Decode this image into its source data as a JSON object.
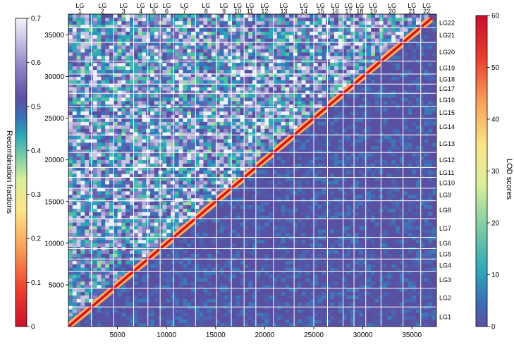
{
  "chart_data": {
    "type": "heatmap",
    "title": "",
    "xlabel": "",
    "ylabel": "",
    "xlim": [
      0,
      37500
    ],
    "ylim": [
      0,
      37500
    ],
    "x_ticks": [
      5000,
      10000,
      15000,
      20000,
      25000,
      30000,
      35000
    ],
    "y_ticks": [
      5000,
      10000,
      15000,
      20000,
      25000,
      30000,
      35000
    ],
    "linkage_groups": [
      {
        "top_label": [
          "LG",
          "1"
        ],
        "right_label": "LG1",
        "start": 0,
        "end": 2350
      },
      {
        "top_label": [
          "LG",
          "2"
        ],
        "right_label": "LG2",
        "start": 2350,
        "end": 4600
      },
      {
        "top_label": [
          "LG",
          "3"
        ],
        "right_label": "LG3",
        "start": 4600,
        "end": 6650
      },
      {
        "top_label": [
          "LG",
          "4"
        ],
        "right_label": "LG4",
        "start": 6650,
        "end": 8100
      },
      {
        "top_label": [
          "LG",
          "5"
        ],
        "right_label": "LG5",
        "start": 8100,
        "end": 9350
      },
      {
        "top_label": [
          "LG",
          "6"
        ],
        "right_label": "LG6",
        "start": 9350,
        "end": 10700
      },
      {
        "top_label": [
          "LG",
          "7"
        ],
        "right_label": "LG7",
        "start": 10700,
        "end": 12950
      },
      {
        "top_label": [
          "LG",
          "8"
        ],
        "right_label": "LG8",
        "start": 12950,
        "end": 15100
      },
      {
        "top_label": [
          "LG",
          "9"
        ],
        "right_label": "LG9",
        "start": 15100,
        "end": 16600
      },
      {
        "top_label": [
          "LG",
          "10"
        ],
        "right_label": "LG10",
        "start": 16600,
        "end": 17900
      },
      {
        "top_label": [
          "LG",
          "11"
        ],
        "right_label": "LG11",
        "start": 17900,
        "end": 19100
      },
      {
        "top_label": [
          "LG",
          "12"
        ],
        "right_label": "LG12",
        "start": 19100,
        "end": 20900
      },
      {
        "top_label": [
          "LG",
          "13"
        ],
        "right_label": "LG13",
        "start": 20900,
        "end": 23000
      },
      {
        "top_label": [
          "LG",
          "14"
        ],
        "right_label": "LG14",
        "start": 23000,
        "end": 25000
      },
      {
        "top_label": [
          "LG",
          "15"
        ],
        "right_label": "LG15",
        "start": 25000,
        "end": 26400
      },
      {
        "top_label": [
          "LG",
          "16"
        ],
        "right_label": "LG16",
        "start": 26400,
        "end": 28000
      },
      {
        "top_label": [
          "LG",
          "17"
        ],
        "right_label": "LG17",
        "start": 28000,
        "end": 29100
      },
      {
        "top_label": [
          "LG",
          "18"
        ],
        "right_label": "LG18",
        "start": 29100,
        "end": 30300
      },
      {
        "top_label": [
          "LG",
          "19"
        ],
        "right_label": "LG19",
        "start": 30300,
        "end": 31850
      },
      {
        "top_label": [
          "LG",
          "20"
        ],
        "right_label": "LG20",
        "start": 31850,
        "end": 34100
      },
      {
        "top_label": [
          "LG",
          "21"
        ],
        "right_label": "LG21",
        "start": 34100,
        "end": 35900
      },
      {
        "top_label": [
          "LG",
          "22"
        ],
        "right_label": "LG22",
        "start": 35900,
        "end": 37100
      }
    ],
    "upper_triangle": "Recombination fractions",
    "lower_triangle": "LOD scores",
    "left_colorbar": {
      "label": "Recombination fractions",
      "ticks": [
        "0",
        "0.1",
        "0.2",
        "0.3",
        "0.4",
        "0.5",
        "0.6",
        "0.7"
      ],
      "range": [
        0,
        0.7
      ]
    },
    "right_colorbar": {
      "label": "LOD scores",
      "ticks": [
        "0",
        "10",
        "20",
        "30",
        "40",
        "50",
        "60"
      ],
      "range": [
        0,
        60
      ]
    },
    "colors": {
      "background": "#5b4fa0",
      "grid": "#ffffff",
      "diagonal_high": "#d7191c",
      "scale": [
        "#c8102e",
        "#e8412e",
        "#f7a35c",
        "#fbe68a",
        "#d6ee9b",
        "#7fcba4",
        "#2fa7b8",
        "#3b6fb6",
        "#5b4fa0",
        "#8c84c4",
        "#c8c4e4",
        "#f4f4fa"
      ]
    }
  }
}
